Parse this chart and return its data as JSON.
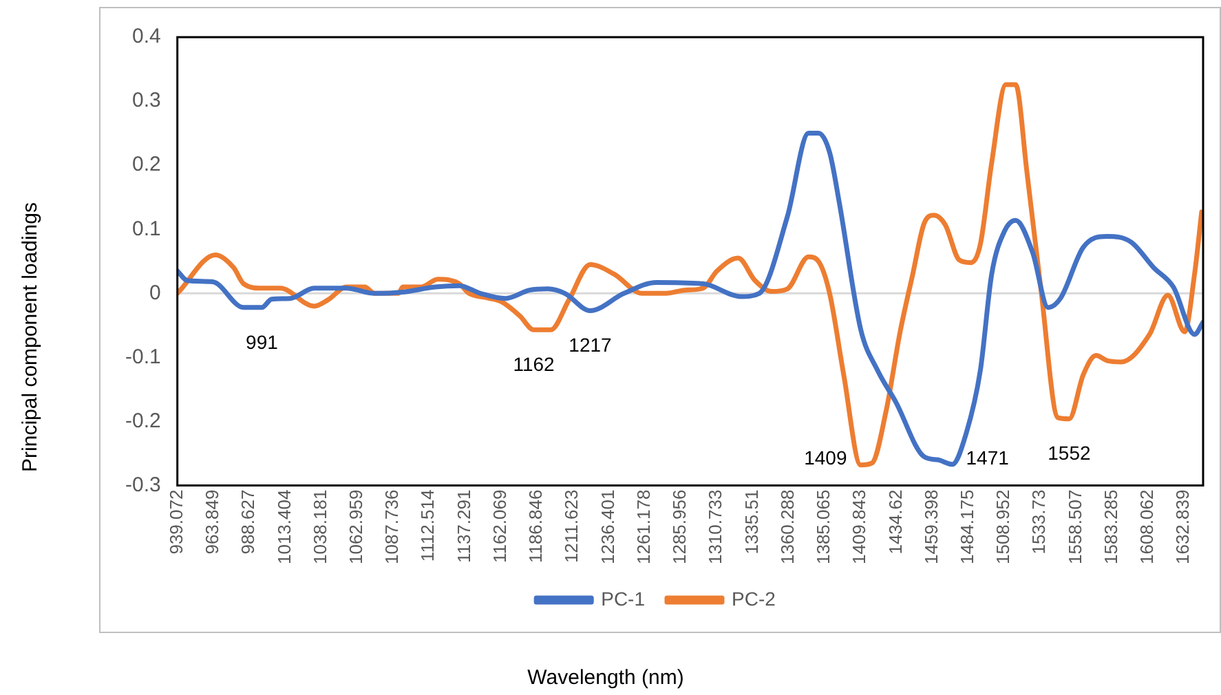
{
  "chart_data": {
    "type": "line",
    "xlabel": "Wavelength (nm)",
    "ylabel": "Principal component loadings",
    "xlim": [
      939.072,
      1646
    ],
    "xticks": [
      939.072,
      963.849,
      988.627,
      1013.404,
      1038.181,
      1062.959,
      1087.736,
      1112.514,
      1137.291,
      1162.069,
      1186.846,
      1211.623,
      1236.401,
      1261.178,
      1285.956,
      1310.733,
      1335.51,
      1360.288,
      1385.065,
      1409.843,
      1434.62,
      1459.398,
      1484.175,
      1508.952,
      1533.73,
      1558.507,
      1583.285,
      1608.062,
      1632.839
    ],
    "ylim": [
      -0.3,
      0.4
    ],
    "yticks": [
      -0.3,
      -0.2,
      -0.1,
      0,
      0.1,
      0.2,
      0.3,
      0.4
    ],
    "grid": false,
    "legend": "bottom",
    "marker": "none",
    "line_style": "solid",
    "ref_lines": [
      {
        "axis": "y",
        "value": 0,
        "color": "#d9d9d9"
      }
    ],
    "series": [
      {
        "name": "PC-1",
        "color": "#4472c4",
        "x": [
          939.072,
          945.9,
          963.4,
          984.7,
          997.3,
          1004.1,
          1016.8,
          1033.3,
          1055.6,
          1075,
          1094.4,
          1116.8,
          1133.3,
          1147.8,
          1165.3,
          1181.8,
          1194.5,
          1206.1,
          1223.6,
          1246.9,
          1269.2,
          1301.3,
          1327.5,
          1340.1,
          1359.5,
          1374.1,
          1380.9,
          1388.6,
          1395.4,
          1410,
          1421.6,
          1434.3,
          1453.7,
          1463.4,
          1473.1,
          1482.8,
          1492.5,
          1500.3,
          1509.1,
          1516.8,
          1528.5,
          1539.2,
          1547.9,
          1563.4,
          1579.9,
          1596.4,
          1612,
          1625.5,
          1640.1,
          1646
        ],
        "values": [
          0.035,
          0.02,
          0.018,
          -0.022,
          -0.022,
          -0.009,
          -0.008,
          0.008,
          0.008,
          0,
          0.002,
          0.01,
          0.012,
          0,
          -0.008,
          0.005,
          0.007,
          0,
          -0.027,
          0,
          0.017,
          0.015,
          -0.005,
          0,
          0.12,
          0.25,
          0.25,
          0.22,
          0.14,
          -0.056,
          -0.12,
          -0.17,
          -0.255,
          -0.26,
          -0.267,
          -0.218,
          -0.12,
          0.03,
          0.097,
          0.114,
          0.064,
          -0.022,
          -0.007,
          0.072,
          0.089,
          0.08,
          0.04,
          0.01,
          -0.064,
          -0.045
        ]
      },
      {
        "name": "PC-2",
        "color": "#ed7d31",
        "x": [
          939.072,
          965.3,
          977.9,
          984.7,
          997.3,
          1010,
          1033.3,
          1043,
          1055.6,
          1068.2,
          1075,
          1091.5,
          1094.4,
          1107,
          1118.7,
          1133.3,
          1140.1,
          1152.7,
          1162.4,
          1175,
          1184.7,
          1196.4,
          1209,
          1223.6,
          1240.1,
          1259.5,
          1276,
          1288.6,
          1301.3,
          1311,
          1325.6,
          1337.2,
          1348.8,
          1359.5,
          1374.1,
          1380.9,
          1388.6,
          1398.3,
          1410,
          1417.8,
          1427.5,
          1437.2,
          1445.9,
          1453.7,
          1460.5,
          1468.3,
          1478,
          1485.8,
          1492.5,
          1500.3,
          1510.1,
          1516.8,
          1524.6,
          1534.3,
          1545.9,
          1553.7,
          1563.4,
          1572.2,
          1579.9,
          1589.6,
          1609.1,
          1621.7,
          1633.3,
          1640.1,
          1645
        ],
        "values": [
          0,
          0.06,
          0.04,
          0.015,
          0.008,
          0.008,
          -0.02,
          -0.01,
          0.01,
          0.01,
          0,
          0,
          0.01,
          0.01,
          0.022,
          0.015,
          0,
          -0.007,
          -0.013,
          -0.035,
          -0.057,
          -0.057,
          -0.01,
          0.045,
          0.03,
          0,
          0,
          0.005,
          0.008,
          0.035,
          0.055,
          0.02,
          0.003,
          0.007,
          0.057,
          0.05,
          0,
          -0.127,
          -0.268,
          -0.265,
          -0.184,
          -0.06,
          0.03,
          0.109,
          0.122,
          0.107,
          0.052,
          0.048,
          0.077,
          0.204,
          0.326,
          0.326,
          0.189,
          0.005,
          -0.194,
          -0.196,
          -0.127,
          -0.097,
          -0.105,
          -0.107,
          -0.064,
          -0.003,
          -0.06,
          0.03,
          0.127
        ]
      }
    ],
    "annotations": [
      {
        "text": "991",
        "x": 997.3,
        "y": -0.022
      },
      {
        "text": "1162",
        "x": 1184.7,
        "y": -0.057
      },
      {
        "text": "1217",
        "x": 1223.6,
        "y": -0.027
      },
      {
        "text": "1409",
        "x": 1410,
        "y": -0.268
      },
      {
        "text": "1471",
        "x": 1473.1,
        "y": -0.267
      },
      {
        "text": "1552",
        "x": 1553.7,
        "y": -0.196
      }
    ]
  }
}
